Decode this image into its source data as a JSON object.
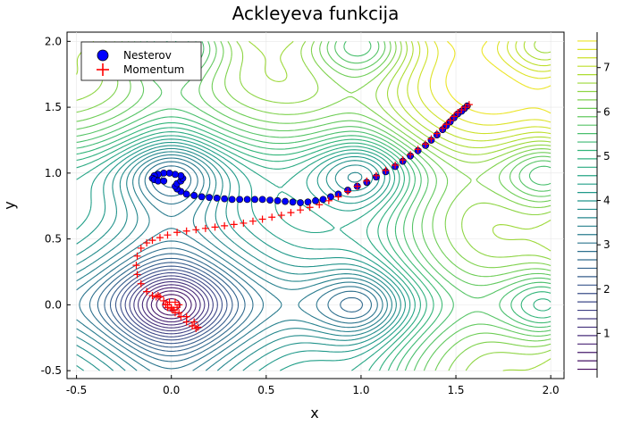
{
  "chart_data": {
    "type": "contour",
    "title": "Ackleyeva funkcija",
    "xlabel": "x",
    "ylabel": "y",
    "xlim": [
      -0.55,
      2.07
    ],
    "ylim": [
      -0.56,
      2.07
    ],
    "xticks": [
      "-0.5",
      "0.0",
      "0.5",
      "1.0",
      "1.5",
      "2.0"
    ],
    "yticks": [
      "-0.5",
      "0.0",
      "0.5",
      "1.0",
      "1.5",
      "2.0"
    ],
    "grid": true,
    "legend_position": "top-left",
    "colorbar": {
      "colormap": "viridis",
      "range": [
        0,
        7.8
      ],
      "ticks": [
        "1",
        "2",
        "3",
        "4",
        "5",
        "6",
        "7"
      ]
    },
    "series": [
      {
        "name": "Nesterov",
        "marker": "circle",
        "color": "#0000ff",
        "x": [
          1.56,
          1.545,
          1.53,
          1.51,
          1.49,
          1.47,
          1.45,
          1.43,
          1.4,
          1.37,
          1.34,
          1.3,
          1.26,
          1.22,
          1.18,
          1.13,
          1.08,
          1.03,
          0.98,
          0.93,
          0.88,
          0.84,
          0.8,
          0.76,
          0.72,
          0.68,
          0.64,
          0.6,
          0.56,
          0.52,
          0.48,
          0.44,
          0.4,
          0.36,
          0.32,
          0.28,
          0.24,
          0.2,
          0.16,
          0.12,
          0.08,
          0.05,
          0.03,
          0.02,
          0.03,
          0.05,
          0.06,
          0.05,
          0.02,
          -0.01,
          -0.04,
          -0.07,
          -0.09,
          -0.1,
          -0.09,
          -0.07,
          -0.04
        ],
        "y": [
          1.51,
          1.49,
          1.47,
          1.45,
          1.42,
          1.39,
          1.36,
          1.33,
          1.29,
          1.25,
          1.21,
          1.17,
          1.13,
          1.09,
          1.05,
          1.01,
          0.97,
          0.93,
          0.9,
          0.87,
          0.84,
          0.82,
          0.8,
          0.79,
          0.78,
          0.775,
          0.78,
          0.785,
          0.79,
          0.795,
          0.8,
          0.8,
          0.8,
          0.8,
          0.8,
          0.805,
          0.81,
          0.815,
          0.82,
          0.83,
          0.84,
          0.86,
          0.88,
          0.9,
          0.92,
          0.94,
          0.96,
          0.98,
          0.99,
          1.0,
          1.0,
          0.99,
          0.98,
          0.96,
          0.95,
          0.94,
          0.94
        ]
      },
      {
        "name": "Momentum",
        "marker": "cross",
        "color": "#ff0000",
        "x": [
          1.57,
          1.55,
          1.53,
          1.51,
          1.49,
          1.47,
          1.45,
          1.43,
          1.4,
          1.37,
          1.34,
          1.3,
          1.26,
          1.22,
          1.18,
          1.13,
          1.08,
          1.03,
          0.98,
          0.93,
          0.88,
          0.83,
          0.78,
          0.73,
          0.68,
          0.63,
          0.58,
          0.53,
          0.48,
          0.43,
          0.38,
          0.33,
          0.28,
          0.23,
          0.18,
          0.13,
          0.08,
          0.03,
          -0.02,
          -0.06,
          -0.1,
          -0.13,
          -0.16,
          -0.18,
          -0.185,
          -0.18,
          -0.16,
          -0.13,
          -0.1,
          -0.08,
          -0.07,
          -0.06,
          -0.04,
          -0.02,
          0.0,
          0.02,
          0.05,
          0.08,
          0.11,
          0.13,
          0.14,
          0.12,
          0.08,
          0.04,
          0.01,
          -0.02,
          -0.03,
          -0.01,
          0.02,
          0.04,
          0.03,
          0.0,
          -0.02
        ],
        "y": [
          1.52,
          1.5,
          1.48,
          1.46,
          1.43,
          1.4,
          1.37,
          1.34,
          1.3,
          1.26,
          1.22,
          1.18,
          1.14,
          1.1,
          1.06,
          1.02,
          0.98,
          0.94,
          0.9,
          0.86,
          0.82,
          0.79,
          0.76,
          0.74,
          0.72,
          0.7,
          0.68,
          0.665,
          0.65,
          0.635,
          0.62,
          0.61,
          0.6,
          0.59,
          0.58,
          0.57,
          0.56,
          0.55,
          0.53,
          0.51,
          0.49,
          0.47,
          0.43,
          0.37,
          0.3,
          0.23,
          0.16,
          0.1,
          0.07,
          0.06,
          0.07,
          0.06,
          0.03,
          0.0,
          -0.03,
          -0.06,
          -0.09,
          -0.13,
          -0.16,
          -0.18,
          -0.17,
          -0.13,
          -0.09,
          -0.06,
          -0.04,
          -0.02,
          0.0,
          0.02,
          0.02,
          0.0,
          -0.02,
          -0.02,
          0.0
        ]
      }
    ]
  }
}
